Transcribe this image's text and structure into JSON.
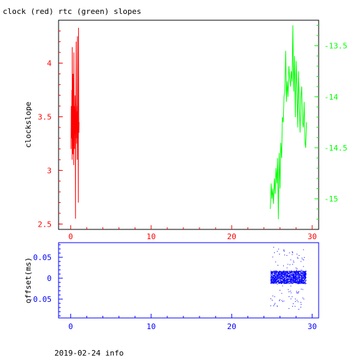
{
  "chart_data": [
    {
      "type": "line",
      "title": "clock (red) rtc (green) slopes",
      "ylabel": "clockslope",
      "xlim": [
        -1.5,
        30.8
      ],
      "ylim": [
        2.45,
        4.4
      ],
      "x_ticks": [
        0,
        10,
        20,
        30
      ],
      "y_ticks": [
        2.5,
        3,
        3.5,
        4
      ],
      "y_tick_labels": [
        "2.5",
        "3",
        "3.5",
        "4"
      ],
      "y2lim": [
        -15.3,
        -13.25
      ],
      "y2_ticks": [
        -15,
        -14.5,
        -14,
        -13.5
      ],
      "y2_tick_labels": [
        "-15",
        "-14.5",
        "-14",
        "-13.5"
      ],
      "grid": false,
      "series": [
        {
          "color": "#ff0000",
          "axis": "left",
          "x": [
            0.05,
            0.08,
            0.12,
            0.15,
            0.18,
            0.2,
            0.22,
            0.25,
            0.28,
            0.3,
            0.33,
            0.35,
            0.38,
            0.4,
            0.42,
            0.45,
            0.48,
            0.5,
            0.52,
            0.55,
            0.58,
            0.6,
            0.62,
            0.65,
            0.68,
            0.7,
            0.72,
            0.75,
            0.78,
            0.8,
            0.82,
            0.85,
            0.88,
            0.9,
            0.92,
            0.95,
            0.98,
            1.0,
            1.02,
            1.05
          ],
          "values": [
            3.2,
            3.6,
            3.3,
            3.75,
            3.1,
            4.15,
            3.3,
            3.55,
            3.15,
            3.9,
            3.45,
            3.4,
            3.05,
            4.1,
            3.5,
            3.6,
            3.2,
            3.55,
            3.35,
            3.7,
            3.4,
            2.55,
            3.5,
            3.3,
            4.2,
            3.5,
            3.6,
            3.25,
            3.45,
            3.55,
            3.1,
            4.25,
            3.5,
            3.3,
            3.6,
            2.7,
            4.33,
            3.5,
            3.35,
            3.45
          ]
        },
        {
          "color": "#00ff00",
          "axis": "right",
          "x": [
            24.8,
            24.9,
            25.0,
            25.1,
            25.2,
            25.3,
            25.4,
            25.5,
            25.6,
            25.7,
            25.8,
            25.9,
            26.0,
            26.1,
            26.2,
            26.3,
            26.4,
            26.5,
            26.6,
            26.7,
            26.8,
            26.9,
            27.0,
            27.1,
            27.2,
            27.3,
            27.4,
            27.5,
            27.6,
            27.7,
            27.8,
            27.9,
            28.0,
            28.1,
            28.2,
            28.3,
            28.4,
            28.5,
            28.6,
            28.7,
            28.8,
            28.9,
            29.0,
            29.1,
            29.2,
            29.3
          ],
          "values": [
            -15.1,
            -14.85,
            -15.0,
            -14.9,
            -15.05,
            -14.8,
            -14.95,
            -14.7,
            -14.85,
            -14.6,
            -15.2,
            -14.55,
            -14.9,
            -14.45,
            -14.6,
            -14.2,
            -14.25,
            -14.0,
            -13.95,
            -13.55,
            -14.05,
            -13.85,
            -14.0,
            -13.7,
            -13.8,
            -13.9,
            -13.75,
            -13.85,
            -13.3,
            -13.95,
            -13.6,
            -14.2,
            -13.65,
            -13.9,
            -14.3,
            -13.75,
            -14.1,
            -14.35,
            -14.0,
            -13.9,
            -14.25,
            -14.3,
            -14.05,
            -14.45,
            -14.5,
            -14.25
          ]
        }
      ]
    },
    {
      "type": "scatter",
      "ylabel": "offset(ms)",
      "xlim": [
        -1.5,
        30.8
      ],
      "ylim": [
        -0.095,
        0.085
      ],
      "x_ticks": [
        0,
        10,
        20,
        30
      ],
      "y_ticks": [
        -0.05,
        0,
        0.05
      ],
      "y_tick_labels": [
        "-0.05",
        "0",
        "0.05"
      ],
      "grid": false,
      "series": [
        {
          "color": "#0000ff",
          "x_range": [
            24.8,
            29.2
          ],
          "y_band": [
            -0.012,
            0.018
          ],
          "outlier_range": [
            -0.075,
            0.075
          ]
        }
      ]
    }
  ],
  "footer": "2019-02-24 info"
}
